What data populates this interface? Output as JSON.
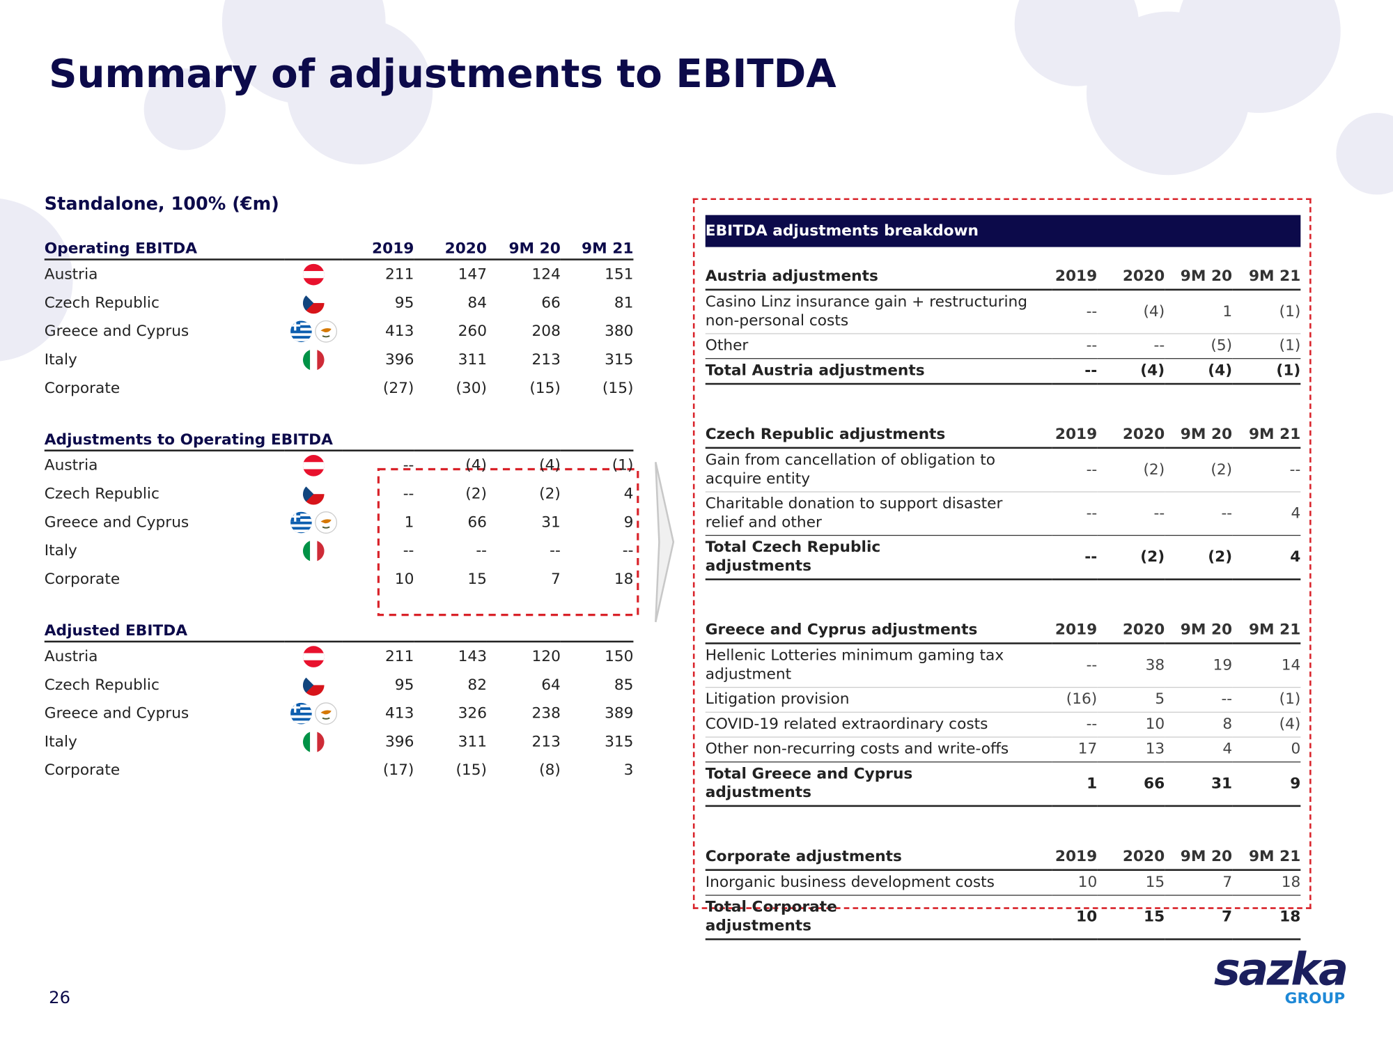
{
  "title": "Summary of adjustments to EBITDA",
  "left": {
    "subtitle": "Standalone, 100% (€m)",
    "columns": [
      "2019",
      "2020",
      "9M 20",
      "9M 21"
    ],
    "sections": [
      {
        "header": "Operating EBITDA",
        "rows": [
          {
            "label": "Austria",
            "values": [
              "211",
              "147",
              "124",
              "151"
            ]
          },
          {
            "label": "Czech Republic",
            "values": [
              "95",
              "84",
              "66",
              "81"
            ]
          },
          {
            "label": "Greece and Cyprus",
            "values": [
              "413",
              "260",
              "208",
              "380"
            ]
          },
          {
            "label": "Italy",
            "values": [
              "396",
              "311",
              "213",
              "315"
            ]
          },
          {
            "label": "Corporate",
            "values": [
              "(27)",
              "(30)",
              "(15)",
              "(15)"
            ]
          }
        ]
      },
      {
        "header": "Adjustments to Operating EBITDA",
        "rows": [
          {
            "label": "Austria",
            "values": [
              "--",
              "(4)",
              "(4)",
              "(1)"
            ]
          },
          {
            "label": "Czech Republic",
            "values": [
              "--",
              "(2)",
              "(2)",
              "4"
            ]
          },
          {
            "label": "Greece and Cyprus",
            "values": [
              "1",
              "66",
              "31",
              "9"
            ]
          },
          {
            "label": "Italy",
            "values": [
              "--",
              "--",
              "--",
              "--"
            ]
          },
          {
            "label": "Corporate",
            "values": [
              "10",
              "15",
              "7",
              "18"
            ]
          }
        ]
      },
      {
        "header": "Adjusted EBITDA",
        "rows": [
          {
            "label": "Austria",
            "values": [
              "211",
              "143",
              "120",
              "150"
            ]
          },
          {
            "label": "Czech Republic",
            "values": [
              "95",
              "82",
              "64",
              "85"
            ]
          },
          {
            "label": "Greece and Cyprus",
            "values": [
              "413",
              "326",
              "238",
              "389"
            ]
          },
          {
            "label": "Italy",
            "values": [
              "396",
              "311",
              "213",
              "315"
            ]
          },
          {
            "label": "Corporate",
            "values": [
              "(17)",
              "(15)",
              "(8)",
              "3"
            ]
          }
        ]
      }
    ]
  },
  "right": {
    "title": "EBITDA adjustments breakdown",
    "sections": [
      {
        "header": "Austria adjustments",
        "columns": [
          "2019",
          "2020",
          "9M 20",
          "9M 21"
        ],
        "rows": [
          {
            "label": "Casino Linz insurance gain + restructuring non-personal costs",
            "values": [
              "--",
              "(4)",
              "1",
              "(1)"
            ]
          },
          {
            "label": "Other",
            "values": [
              "--",
              "--",
              "(5)",
              "(1)"
            ]
          }
        ],
        "total": {
          "label": "Total Austria adjustments",
          "values": [
            "--",
            "(4)",
            "(4)",
            "(1)"
          ]
        }
      },
      {
        "header": "Czech Republic adjustments",
        "columns": [
          "2019",
          "2020",
          "9M 20",
          "9M 21"
        ],
        "rows": [
          {
            "label": "Gain from cancellation of obligation to acquire entity",
            "values": [
              "--",
              "(2)",
              "(2)",
              "--"
            ]
          },
          {
            "label": "Charitable donation to support disaster relief and other",
            "values": [
              "--",
              "--",
              "--",
              "4"
            ]
          }
        ],
        "total": {
          "label": "Total Czech Republic adjustments",
          "values": [
            "--",
            "(2)",
            "(2)",
            "4"
          ]
        }
      },
      {
        "header": "Greece and Cyprus adjustments",
        "columns": [
          "2019",
          "2020",
          "9M 20",
          "9M 21"
        ],
        "rows": [
          {
            "label": "Hellenic Lotteries minimum gaming tax adjustment",
            "values": [
              "--",
              "38",
              "19",
              "14"
            ]
          },
          {
            "label": "Litigation provision",
            "values": [
              "(16)",
              "5",
              "--",
              "(1)"
            ]
          },
          {
            "label": "COVID-19 related extraordinary costs",
            "values": [
              "--",
              "10",
              "8",
              "(4)"
            ]
          },
          {
            "label": "Other non-recurring costs and write-offs",
            "values": [
              "17",
              "13",
              "4",
              "0"
            ]
          }
        ],
        "total": {
          "label": "Total Greece and Cyprus adjustments",
          "values": [
            "1",
            "66",
            "31",
            "9"
          ]
        }
      },
      {
        "header": "Corporate adjustments",
        "columns": [
          "2019",
          "2020",
          "9M 20",
          "9M 21"
        ],
        "rows": [
          {
            "label": "Inorganic business development costs",
            "values": [
              "10",
              "15",
              "7",
              "18"
            ]
          }
        ],
        "total": {
          "label": "Total Corporate adjustments",
          "values": [
            "10",
            "15",
            "7",
            "18"
          ]
        }
      }
    ]
  },
  "footer": {
    "page": "26",
    "logo": "sazka",
    "logo_sub": "GROUP"
  }
}
